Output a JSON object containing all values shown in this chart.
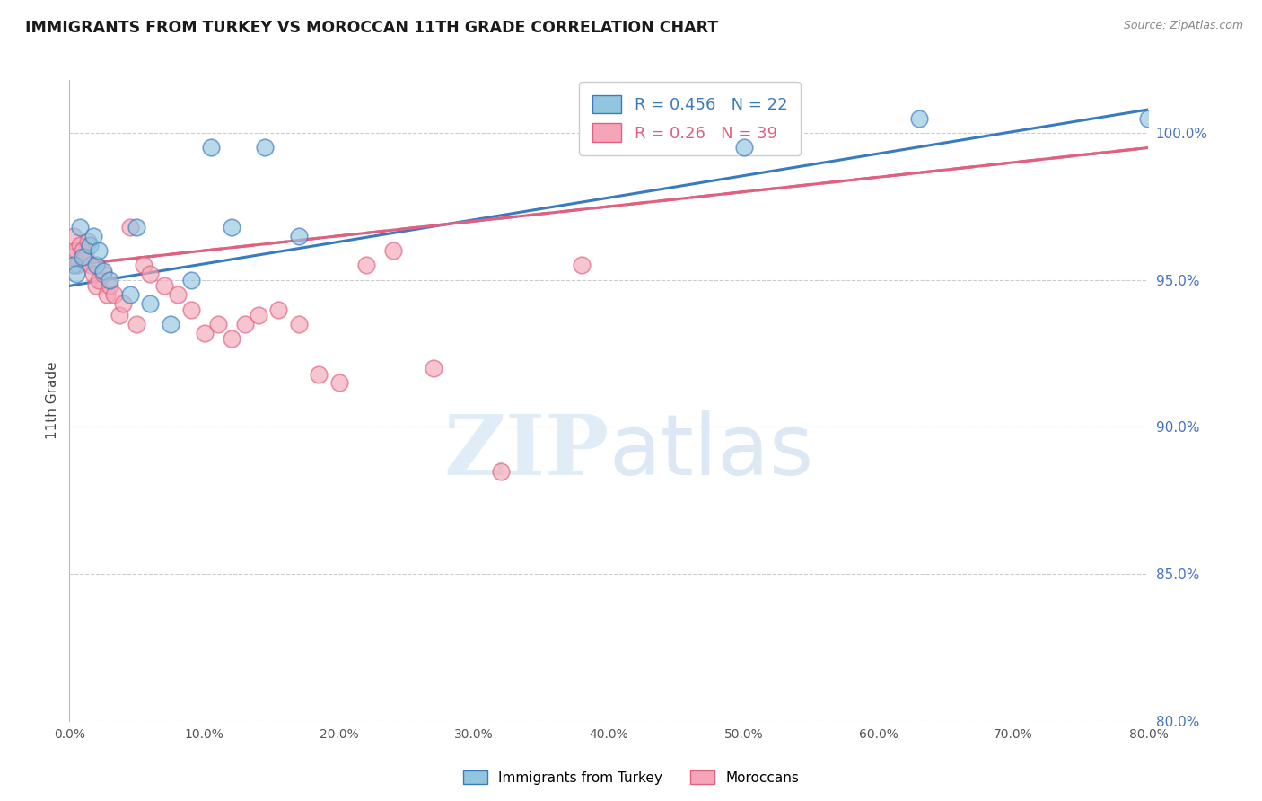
{
  "title": "IMMIGRANTS FROM TURKEY VS MOROCCAN 11TH GRADE CORRELATION CHART",
  "source": "Source: ZipAtlas.com",
  "xlabel_ticks": [
    "0.0%",
    "10.0%",
    "20.0%",
    "30.0%",
    "40.0%",
    "50.0%",
    "60.0%",
    "70.0%",
    "80.0%"
  ],
  "xlabel_vals": [
    0,
    10,
    20,
    30,
    40,
    50,
    60,
    70,
    80
  ],
  "ylabel": "11th Grade",
  "ylabel_ticks": [
    "80.0%",
    "85.0%",
    "90.0%",
    "95.0%",
    "100.0%"
  ],
  "ylabel_vals": [
    80,
    85,
    90,
    95,
    100
  ],
  "xmin": 0,
  "xmax": 80,
  "ymin": 80,
  "ymax": 101.8,
  "blue_label": "Immigrants from Turkey",
  "pink_label": "Moroccans",
  "R_blue": 0.456,
  "N_blue": 22,
  "R_pink": 0.26,
  "N_pink": 39,
  "blue_color": "#92c5de",
  "pink_color": "#f4a6b8",
  "line_blue": "#3a7bbf",
  "line_pink": "#e06080",
  "watermark_zip": "ZIP",
  "watermark_atlas": "atlas",
  "blue_x": [
    0.3,
    0.5,
    0.8,
    1.0,
    1.5,
    1.8,
    2.0,
    2.2,
    2.5,
    3.0,
    4.5,
    5.0,
    6.0,
    7.5,
    9.0,
    10.5,
    12.0,
    14.5,
    17.0,
    50.0,
    63.0,
    80.0
  ],
  "blue_y": [
    95.5,
    95.2,
    96.8,
    95.8,
    96.2,
    96.5,
    95.5,
    96.0,
    95.3,
    95.0,
    94.5,
    96.8,
    94.2,
    93.5,
    95.0,
    99.5,
    96.8,
    99.5,
    96.5,
    99.5,
    100.5,
    100.5
  ],
  "pink_x": [
    0.2,
    0.3,
    0.5,
    0.6,
    0.8,
    1.0,
    1.2,
    1.4,
    1.6,
    1.8,
    2.0,
    2.2,
    2.5,
    2.8,
    3.0,
    3.3,
    3.7,
    4.0,
    4.5,
    5.0,
    5.5,
    6.0,
    7.0,
    8.0,
    9.0,
    10.0,
    11.0,
    12.0,
    13.0,
    14.0,
    15.5,
    17.0,
    18.5,
    20.0,
    22.0,
    24.0,
    27.0,
    32.0,
    38.0
  ],
  "pink_y": [
    95.8,
    96.5,
    96.0,
    95.5,
    96.2,
    96.0,
    95.8,
    96.3,
    95.5,
    95.2,
    94.8,
    95.0,
    95.2,
    94.5,
    94.8,
    94.5,
    93.8,
    94.2,
    96.8,
    93.5,
    95.5,
    95.2,
    94.8,
    94.5,
    94.0,
    93.2,
    93.5,
    93.0,
    93.5,
    93.8,
    94.0,
    93.5,
    91.8,
    91.5,
    95.5,
    96.0,
    92.0,
    88.5,
    95.5
  ],
  "blue_trendline_x": [
    0,
    80
  ],
  "blue_trendline_y": [
    94.8,
    100.8
  ],
  "pink_trendline_x": [
    0,
    80
  ],
  "pink_trendline_y": [
    95.5,
    99.5
  ]
}
